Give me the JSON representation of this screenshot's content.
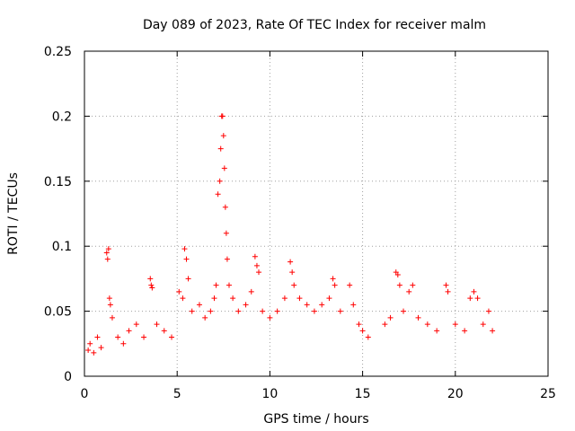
{
  "chart_data": {
    "type": "scatter",
    "title": "Day 089 of 2023, Rate Of TEC Index for receiver malm",
    "xlabel": "GPS time / hours",
    "ylabel": "ROTI / TECUs",
    "xlim": [
      0,
      25
    ],
    "ylim": [
      0,
      0.25
    ],
    "xticks": [
      "0",
      "5",
      "10",
      "15",
      "20",
      "25"
    ],
    "yticks": [
      "0",
      "0.05",
      "0.1",
      "0.15",
      "0.2",
      "0.25"
    ],
    "grid": true,
    "legend": "none",
    "marker": "+",
    "series": [
      {
        "color": "#ff0000",
        "points": [
          [
            0.2,
            0.02
          ],
          [
            0.3,
            0.025
          ],
          [
            0.5,
            0.018
          ],
          [
            0.7,
            0.03
          ],
          [
            0.9,
            0.022
          ],
          [
            1.2,
            0.095
          ],
          [
            1.25,
            0.09
          ],
          [
            1.3,
            0.098
          ],
          [
            1.35,
            0.06
          ],
          [
            1.4,
            0.055
          ],
          [
            1.5,
            0.045
          ],
          [
            1.8,
            0.03
          ],
          [
            2.1,
            0.025
          ],
          [
            2.4,
            0.035
          ],
          [
            2.8,
            0.04
          ],
          [
            3.2,
            0.03
          ],
          [
            3.55,
            0.075
          ],
          [
            3.6,
            0.07
          ],
          [
            3.65,
            0.068
          ],
          [
            3.9,
            0.04
          ],
          [
            4.3,
            0.035
          ],
          [
            4.7,
            0.03
          ],
          [
            5.1,
            0.065
          ],
          [
            5.3,
            0.06
          ],
          [
            5.4,
            0.098
          ],
          [
            5.5,
            0.09
          ],
          [
            5.6,
            0.075
          ],
          [
            5.8,
            0.05
          ],
          [
            6.2,
            0.055
          ],
          [
            6.5,
            0.045
          ],
          [
            6.8,
            0.05
          ],
          [
            7.0,
            0.06
          ],
          [
            7.1,
            0.07
          ],
          [
            7.2,
            0.14
          ],
          [
            7.3,
            0.15
          ],
          [
            7.35,
            0.175
          ],
          [
            7.4,
            0.2
          ],
          [
            7.45,
            0.2
          ],
          [
            7.5,
            0.185
          ],
          [
            7.55,
            0.16
          ],
          [
            7.6,
            0.13
          ],
          [
            7.65,
            0.11
          ],
          [
            7.7,
            0.09
          ],
          [
            7.8,
            0.07
          ],
          [
            8.0,
            0.06
          ],
          [
            8.3,
            0.05
          ],
          [
            8.7,
            0.055
          ],
          [
            9.0,
            0.065
          ],
          [
            9.2,
            0.092
          ],
          [
            9.3,
            0.085
          ],
          [
            9.4,
            0.08
          ],
          [
            9.6,
            0.05
          ],
          [
            10.0,
            0.045
          ],
          [
            10.4,
            0.05
          ],
          [
            10.8,
            0.06
          ],
          [
            11.1,
            0.088
          ],
          [
            11.2,
            0.08
          ],
          [
            11.3,
            0.07
          ],
          [
            11.6,
            0.06
          ],
          [
            12.0,
            0.055
          ],
          [
            12.4,
            0.05
          ],
          [
            12.8,
            0.055
          ],
          [
            13.2,
            0.06
          ],
          [
            13.4,
            0.075
          ],
          [
            13.5,
            0.07
          ],
          [
            13.8,
            0.05
          ],
          [
            14.3,
            0.07
          ],
          [
            14.5,
            0.055
          ],
          [
            14.8,
            0.04
          ],
          [
            15.0,
            0.035
          ],
          [
            15.3,
            0.03
          ],
          [
            16.2,
            0.04
          ],
          [
            16.5,
            0.045
          ],
          [
            16.8,
            0.08
          ],
          [
            16.9,
            0.078
          ],
          [
            17.0,
            0.07
          ],
          [
            17.2,
            0.05
          ],
          [
            17.5,
            0.065
          ],
          [
            17.7,
            0.07
          ],
          [
            18.0,
            0.045
          ],
          [
            18.5,
            0.04
          ],
          [
            19.0,
            0.035
          ],
          [
            19.5,
            0.07
          ],
          [
            19.6,
            0.065
          ],
          [
            20.0,
            0.04
          ],
          [
            20.5,
            0.035
          ],
          [
            20.8,
            0.06
          ],
          [
            21.0,
            0.065
          ],
          [
            21.2,
            0.06
          ],
          [
            21.5,
            0.04
          ],
          [
            21.8,
            0.05
          ],
          [
            22.0,
            0.035
          ]
        ]
      }
    ]
  }
}
